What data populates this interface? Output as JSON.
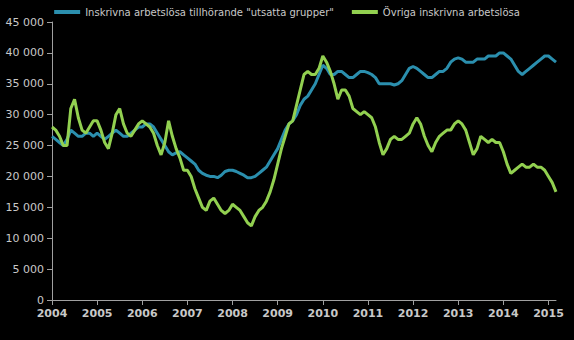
{
  "chart_data": {
    "type": "line",
    "categories": [
      "2004",
      null,
      null,
      null,
      null,
      null,
      null,
      null,
      null,
      null,
      null,
      null,
      "2005",
      null,
      null,
      null,
      null,
      null,
      null,
      null,
      null,
      null,
      null,
      null,
      "2006",
      null,
      null,
      null,
      null,
      null,
      null,
      null,
      null,
      null,
      null,
      null,
      "2007",
      null,
      null,
      null,
      null,
      null,
      null,
      null,
      null,
      null,
      null,
      null,
      "2008",
      null,
      null,
      null,
      null,
      null,
      null,
      null,
      null,
      null,
      null,
      null,
      "2009",
      null,
      null,
      null,
      null,
      null,
      null,
      null,
      null,
      null,
      null,
      null,
      "2010",
      null,
      null,
      null,
      null,
      null,
      null,
      null,
      null,
      null,
      null,
      null,
      "2011",
      null,
      null,
      null,
      null,
      null,
      null,
      null,
      null,
      null,
      null,
      null,
      "2012",
      null,
      null,
      null,
      null,
      null,
      null,
      null,
      null,
      null,
      null,
      null,
      "2013",
      null,
      null,
      null,
      null,
      null,
      null,
      null,
      null,
      null,
      null,
      null,
      "2014",
      null,
      null,
      null,
      null,
      null,
      null,
      null,
      null,
      null,
      null,
      null,
      "2015",
      null,
      null
    ],
    "series": [
      {
        "name": "Inskrivna arbetslösa tillhörande \"utsatta grupper\"",
        "color": "#2b8fae",
        "values": [
          26500,
          26000,
          25500,
          25000,
          26000,
          27500,
          27000,
          26500,
          26500,
          27000,
          27000,
          26500,
          27000,
          26500,
          26000,
          26500,
          27000,
          27500,
          27000,
          26500,
          26500,
          27000,
          27500,
          28000,
          28000,
          28500,
          28500,
          28000,
          27000,
          26000,
          25000,
          24000,
          23500,
          23800,
          24000,
          23500,
          23000,
          22500,
          22000,
          21000,
          20500,
          20200,
          20000,
          20000,
          19800,
          20200,
          20800,
          21000,
          21000,
          20800,
          20500,
          20200,
          19800,
          19800,
          20000,
          20500,
          21000,
          21500,
          22500,
          23500,
          24500,
          26000,
          27500,
          28500,
          29000,
          30000,
          31500,
          32500,
          33000,
          34000,
          35000,
          36500,
          38000,
          37500,
          36500,
          36500,
          37000,
          37000,
          36500,
          36000,
          36000,
          36500,
          37000,
          37000,
          36800,
          36500,
          36000,
          35000,
          35000,
          35000,
          35000,
          34800,
          35000,
          35500,
          36500,
          37500,
          37800,
          37500,
          37000,
          36500,
          36000,
          36000,
          36500,
          37000,
          37000,
          37500,
          38500,
          39000,
          39200,
          39000,
          38500,
          38500,
          38500,
          39000,
          39000,
          39000,
          39500,
          39500,
          39500,
          40000,
          40000,
          39500,
          39000,
          38000,
          37000,
          36500,
          37000,
          37500,
          38000,
          38500,
          39000,
          39500,
          39500,
          39000,
          38500
        ]
      },
      {
        "name": "Övriga inskrivna arbetslösa",
        "color": "#92d050",
        "values": [
          28000,
          27500,
          26500,
          25000,
          25000,
          31000,
          32500,
          29500,
          27500,
          27000,
          28000,
          29000,
          29000,
          27500,
          25500,
          24500,
          27000,
          30000,
          31000,
          28500,
          27000,
          26500,
          27500,
          28500,
          29000,
          28500,
          28000,
          27000,
          25000,
          23500,
          25500,
          29000,
          26500,
          24500,
          23000,
          21000,
          21000,
          20000,
          18000,
          16500,
          15000,
          14500,
          16000,
          16500,
          15500,
          14500,
          14000,
          14500,
          15500,
          15000,
          14500,
          13500,
          12500,
          12000,
          13500,
          14500,
          15000,
          16000,
          17500,
          19500,
          22000,
          24500,
          26500,
          28500,
          29000,
          31500,
          34000,
          36500,
          37000,
          36500,
          36500,
          37500,
          39500,
          38500,
          37000,
          35000,
          32500,
          34000,
          34000,
          33000,
          31000,
          30500,
          30000,
          30500,
          30000,
          29500,
          28000,
          25500,
          23500,
          24500,
          26000,
          26500,
          26000,
          26000,
          26500,
          27000,
          28500,
          29500,
          28500,
          26500,
          25000,
          24000,
          25500,
          26500,
          27000,
          27500,
          27500,
          28500,
          29000,
          28500,
          27500,
          25500,
          23500,
          24500,
          26500,
          26000,
          25500,
          26000,
          25500,
          25500,
          24000,
          22000,
          20500,
          21000,
          21500,
          22000,
          21500,
          21500,
          22000,
          21500,
          21500,
          21000,
          20000,
          19000,
          17500
        ]
      }
    ],
    "ylim": [
      0,
      45000
    ],
    "yticks": [
      0,
      {
        "value": 5000,
        "label": "5 000"
      },
      {
        "value": 10000,
        "label": "10 000"
      },
      {
        "value": 15000,
        "label": "15 000"
      },
      {
        "value": 20000,
        "label": "20 000"
      },
      {
        "value": 25000,
        "label": "25 000"
      },
      {
        "value": 30000,
        "label": "30 000"
      },
      {
        "value": 35000,
        "label": "35 000"
      },
      {
        "value": 40000,
        "label": "40 000"
      },
      {
        "value": 45000,
        "label": "45 000"
      }
    ],
    "grid": false,
    "legend": "top"
  }
}
